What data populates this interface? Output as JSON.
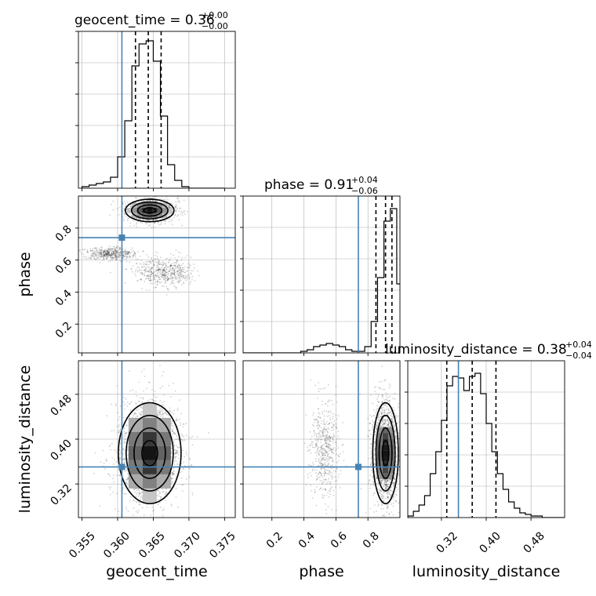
{
  "figure": {
    "type": "corner_plot",
    "parameters": [
      "geocent_time",
      "phase",
      "luminosity_distance"
    ],
    "truth_color": "#4682b4",
    "titles": [
      {
        "param": "geocent_time",
        "main": "geocent_time = 0.36",
        "plus": "+0.00",
        "minus": "−0.00"
      },
      {
        "param": "phase",
        "main": "phase = 0.91",
        "plus": "+0.04",
        "minus": "−0.06"
      },
      {
        "param": "luminosity_distance",
        "main": "luminosity_distance = 0.38",
        "plus": "+0.04",
        "minus": "−0.04"
      }
    ],
    "x_axis_labels": [
      "geocent_time",
      "phase",
      "luminosity_distance"
    ],
    "y_axis_labels": [
      "phase",
      "luminosity_distance"
    ],
    "tick_labels": {
      "geocent_time": [
        "0.355",
        "0.360",
        "0.365",
        "0.370",
        "0.375"
      ],
      "phase": [
        "0.2",
        "0.4",
        "0.6",
        "0.8"
      ],
      "luminosity_distance": [
        "0.32",
        "0.40",
        "0.48"
      ]
    }
  },
  "chart_data": [
    {
      "type": "histogram",
      "param": "geocent_time",
      "title": "geocent_time = 0.36 +0.00 −0.00",
      "xlabel": "geocent_time",
      "xlim": [
        0.3545,
        0.3765
      ],
      "ylim": [
        0,
        1
      ],
      "bin_edges": [
        0.355,
        0.356,
        0.357,
        0.358,
        0.359,
        0.36,
        0.361,
        0.362,
        0.363,
        0.364,
        0.365,
        0.366,
        0.367,
        0.368,
        0.369,
        0.37,
        0.371,
        0.372,
        0.373,
        0.374,
        0.375
      ],
      "counts": [
        0.01,
        0.02,
        0.03,
        0.04,
        0.07,
        0.2,
        0.43,
        0.78,
        0.92,
        0.94,
        0.81,
        0.46,
        0.15,
        0.05,
        0.01,
        0.0,
        0.0,
        0.0,
        0.0,
        0.0
      ],
      "quantiles": [
        0.3625,
        0.3643,
        0.3661
      ],
      "truth": 0.3606,
      "grid": true
    },
    {
      "type": "histogram",
      "param": "phase",
      "title": "phase = 0.91 +0.04 −0.06",
      "xlabel": "phase",
      "xlim": [
        0.02,
        1.0
      ],
      "ylim": [
        0,
        1
      ],
      "bin_edges": [
        0.02,
        0.06,
        0.1,
        0.14,
        0.18,
        0.22,
        0.26,
        0.3,
        0.34,
        0.38,
        0.42,
        0.46,
        0.5,
        0.54,
        0.58,
        0.62,
        0.66,
        0.7,
        0.74,
        0.78,
        0.82,
        0.86,
        0.9,
        0.94,
        0.98,
        1.0
      ],
      "counts": [
        0.0,
        0.0,
        0.0,
        0.0,
        0.0,
        0.0,
        0.0,
        0.0,
        0.0,
        0.01,
        0.02,
        0.04,
        0.05,
        0.06,
        0.05,
        0.04,
        0.02,
        0.01,
        0.01,
        0.04,
        0.2,
        0.48,
        0.84,
        0.92,
        0.44
      ],
      "quantiles": [
        0.85,
        0.91,
        0.95
      ],
      "truth": 0.74,
      "grid": true
    },
    {
      "type": "histogram",
      "param": "luminosity_distance",
      "title": "luminosity_distance = 0.38 +0.04 −0.04",
      "xlabel": "luminosity_distance",
      "xlim": [
        0.26,
        0.54
      ],
      "ylim": [
        0,
        1
      ],
      "bin_edges": [
        0.26,
        0.27,
        0.28,
        0.29,
        0.3,
        0.31,
        0.32,
        0.33,
        0.34,
        0.35,
        0.36,
        0.37,
        0.38,
        0.39,
        0.4,
        0.41,
        0.42,
        0.43,
        0.44,
        0.45,
        0.46,
        0.47,
        0.48,
        0.49,
        0.5,
        0.51,
        0.52,
        0.53,
        0.54
      ],
      "counts": [
        0.01,
        0.04,
        0.08,
        0.14,
        0.28,
        0.42,
        0.62,
        0.84,
        0.9,
        0.89,
        0.81,
        0.9,
        0.92,
        0.79,
        0.6,
        0.42,
        0.28,
        0.18,
        0.1,
        0.06,
        0.03,
        0.02,
        0.01,
        0.01,
        0.0,
        0.0,
        0.0,
        0.0
      ],
      "quantiles": [
        0.3296,
        0.375,
        0.4174
      ],
      "truth": 0.3504,
      "grid": true
    },
    {
      "type": "scatter",
      "x_param": "geocent_time",
      "y_param": "phase",
      "xlim": [
        0.3545,
        0.3765
      ],
      "ylim": [
        0.02,
        1.0
      ],
      "ylabel": "phase",
      "clusters": [
        {
          "x_center": 0.3645,
          "y_center": 0.91,
          "x_sd": 0.0017,
          "y_sd": 0.035,
          "weight": 0.56
        },
        {
          "x_center": 0.3665,
          "y_center": 0.53,
          "x_sd": 0.002,
          "y_sd": 0.045,
          "weight": 0.24
        },
        {
          "x_center": 0.359,
          "y_center": 0.64,
          "x_sd": 0.0017,
          "y_sd": 0.02,
          "weight": 0.2
        }
      ],
      "truth": [
        0.3606,
        0.74
      ],
      "grid": true
    },
    {
      "type": "scatter",
      "x_param": "geocent_time",
      "y_param": "luminosity_distance",
      "xlim": [
        0.3545,
        0.3765
      ],
      "ylim": [
        0.26,
        0.54
      ],
      "ylabel": "luminosity_distance",
      "clusters": [
        {
          "x_center": 0.3645,
          "y_center": 0.375,
          "x_sd": 0.0022,
          "y_sd": 0.045,
          "weight": 1.0
        }
      ],
      "truth": [
        0.3606,
        0.3504
      ],
      "grid": true
    },
    {
      "type": "scatter",
      "x_param": "phase",
      "y_param": "luminosity_distance",
      "xlim": [
        0.02,
        1.0
      ],
      "ylim": [
        0.26,
        0.54
      ],
      "clusters": [
        {
          "x_center": 0.91,
          "y_center": 0.375,
          "x_sd": 0.04,
          "y_sd": 0.045,
          "weight": 0.76
        },
        {
          "x_center": 0.53,
          "y_center": 0.38,
          "x_sd": 0.045,
          "y_sd": 0.045,
          "weight": 0.24
        }
      ],
      "truth": [
        0.74,
        0.3504
      ],
      "grid": true
    }
  ]
}
